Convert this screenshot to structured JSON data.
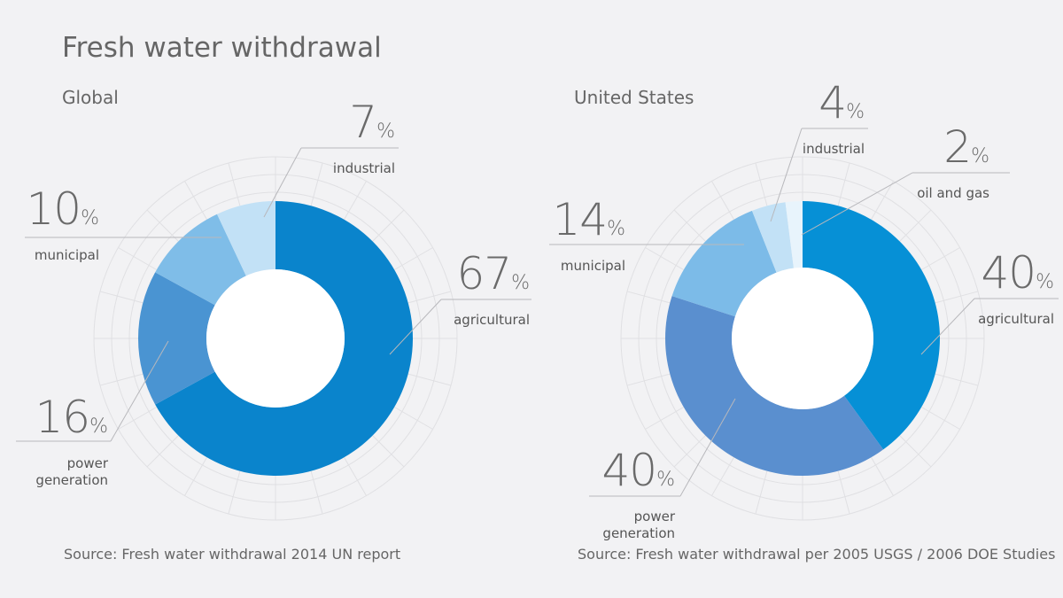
{
  "title": "Fresh water withdrawal",
  "chart_data": [
    {
      "type": "donut",
      "title": "Global",
      "unit": "%",
      "categories": [
        "agricultural",
        "power generation",
        "municipal",
        "industrial"
      ],
      "values": [
        67,
        16,
        10,
        7
      ],
      "colors": [
        "#0a84cc",
        "#4a94d2",
        "#7fbde8",
        "#c2e1f6"
      ],
      "source": "Source: Fresh water withdrawal 2014 UN report"
    },
    {
      "type": "donut",
      "title": "United States",
      "unit": "%",
      "categories": [
        "agricultural",
        "power generation",
        "municipal",
        "industrial",
        "oil and gas"
      ],
      "values": [
        40,
        40,
        14,
        4,
        2
      ],
      "colors": [
        "#0690d6",
        "#5a8fcf",
        "#7cbbe8",
        "#c2e1f6",
        "#e8f4fc"
      ],
      "source": "Source: Fresh water withdrawal per 2005 USGS / 2006 DOE Studies"
    }
  ]
}
